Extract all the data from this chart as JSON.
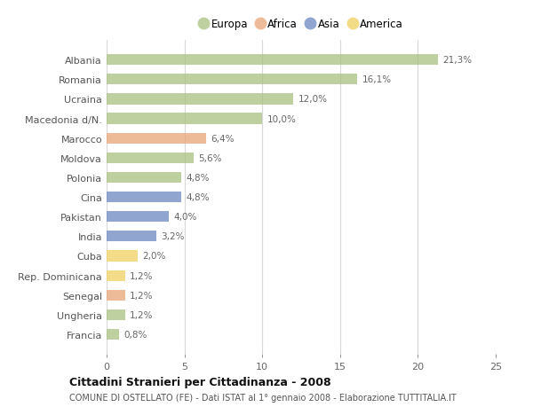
{
  "countries": [
    "Albania",
    "Romania",
    "Ucraina",
    "Macedonia d/N.",
    "Marocco",
    "Moldova",
    "Polonia",
    "Cina",
    "Pakistan",
    "India",
    "Cuba",
    "Rep. Dominicana",
    "Senegal",
    "Ungheria",
    "Francia"
  ],
  "values": [
    21.3,
    16.1,
    12.0,
    10.0,
    6.4,
    5.6,
    4.8,
    4.8,
    4.0,
    3.2,
    2.0,
    1.2,
    1.2,
    1.2,
    0.8
  ],
  "labels": [
    "21,3%",
    "16,1%",
    "12,0%",
    "10,0%",
    "6,4%",
    "5,6%",
    "4,8%",
    "4,8%",
    "4,0%",
    "3,2%",
    "2,0%",
    "1,2%",
    "1,2%",
    "1,2%",
    "0,8%"
  ],
  "continents": [
    "Europa",
    "Europa",
    "Europa",
    "Europa",
    "Africa",
    "Europa",
    "Europa",
    "Asia",
    "Asia",
    "Asia",
    "America",
    "America",
    "Africa",
    "Europa",
    "Europa"
  ],
  "colors": {
    "Europa": "#a8c080",
    "Africa": "#e8a474",
    "Asia": "#6b87c0",
    "America": "#f0d060"
  },
  "title": "Cittadini Stranieri per Cittadinanza - 2008",
  "subtitle": "COMUNE DI OSTELLATO (FE) - Dati ISTAT al 1° gennaio 2008 - Elaborazione TUTTITALIA.IT",
  "xlim": [
    0,
    25
  ],
  "xticks": [
    0,
    5,
    10,
    15,
    20,
    25
  ],
  "background_color": "#ffffff",
  "bar_height": 0.55,
  "grid_color": "#d8d8d8",
  "label_color": "#666666",
  "legend_order": [
    "Europa",
    "Africa",
    "Asia",
    "America"
  ]
}
